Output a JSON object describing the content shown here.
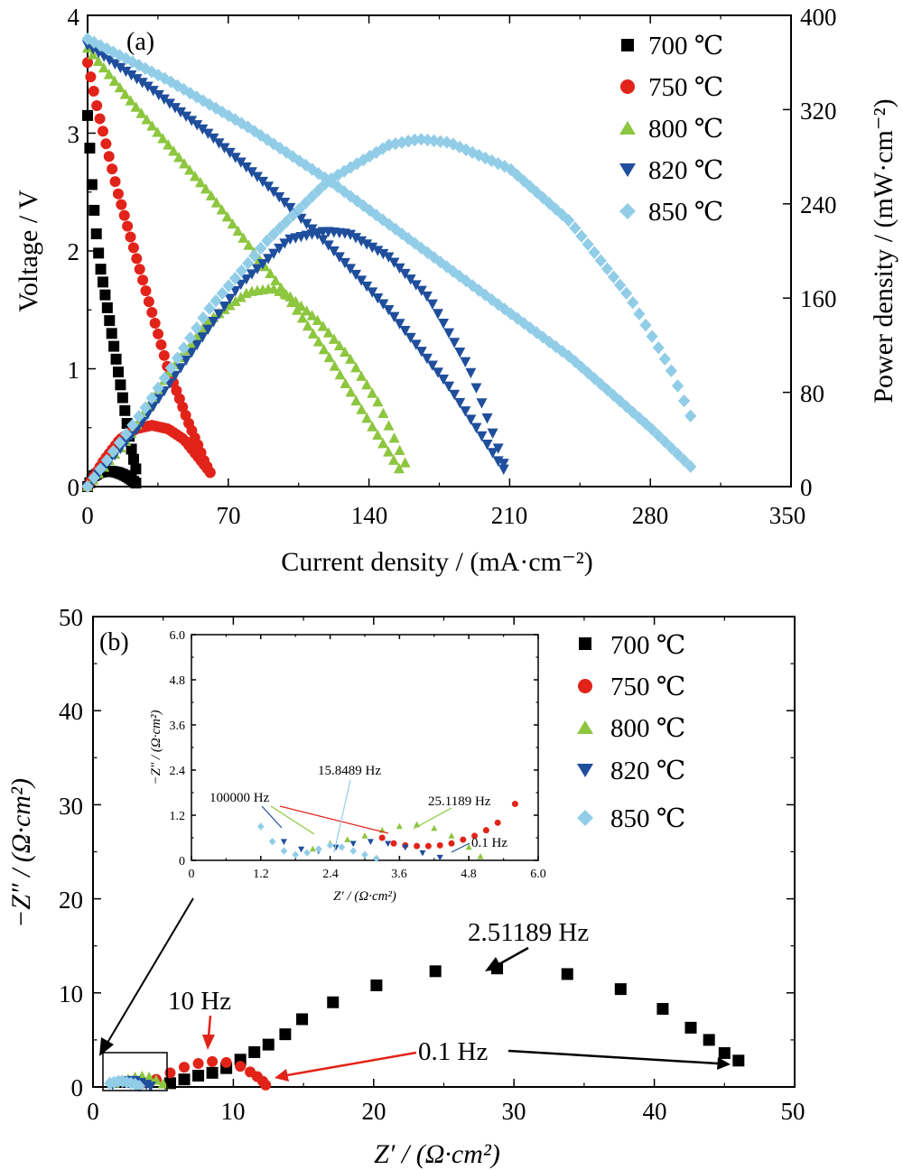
{
  "colors": {
    "700": "#000000",
    "750": "#e2231a",
    "800": "#8dc63f",
    "820": "#1f4e9c",
    "850": "#92cde8"
  },
  "legend": [
    "700 ℃",
    "750 ℃",
    "800 ℃",
    "820 ℃",
    "850 ℃"
  ],
  "chart_data": [
    {
      "type": "line",
      "panel_label": "(a)",
      "xlabel": "Current density / (mA·cm⁻²)",
      "ylabel": "Voltage / V",
      "y2label": "Power density / (mW·cm⁻²)",
      "xlim": [
        0,
        350
      ],
      "ylim": [
        0,
        4
      ],
      "y2lim": [
        0,
        400
      ],
      "xticks": [
        "0",
        "70",
        "140",
        "210",
        "280",
        "350"
      ],
      "yticks": [
        "0",
        "1",
        "2",
        "3",
        "4"
      ],
      "y2ticks": [
        "0",
        "80",
        "160",
        "240",
        "320",
        "400"
      ],
      "legend_position": "top-right",
      "grid": false,
      "voltage_series": [
        {
          "name": "700 ℃",
          "x": [
            0,
            1,
            2,
            4,
            6,
            8,
            10,
            12,
            14,
            16,
            18,
            20,
            22,
            24
          ],
          "y": [
            3.15,
            2.9,
            2.6,
            2.2,
            1.9,
            1.7,
            1.5,
            1.3,
            1.1,
            0.9,
            0.7,
            0.5,
            0.3,
            0.15
          ]
        },
        {
          "name": "750 ℃",
          "x": [
            0,
            5,
            10,
            15,
            20,
            25,
            30,
            35,
            40,
            45,
            50,
            55,
            58,
            61
          ],
          "y": [
            3.6,
            3.2,
            2.85,
            2.5,
            2.2,
            1.9,
            1.6,
            1.3,
            1.0,
            0.78,
            0.55,
            0.35,
            0.22,
            0.12
          ]
        },
        {
          "name": "800 ℃",
          "x": [
            0,
            20,
            40,
            60,
            80,
            100,
            120,
            140,
            155
          ],
          "y": [
            3.72,
            3.3,
            2.9,
            2.5,
            2.05,
            1.6,
            1.1,
            0.55,
            0.15
          ]
        },
        {
          "name": "820 ℃",
          "x": [
            0,
            30,
            60,
            90,
            120,
            150,
            180,
            207
          ],
          "y": [
            3.75,
            3.4,
            3.0,
            2.55,
            2.05,
            1.5,
            0.85,
            0.15
          ]
        },
        {
          "name": "850 ℃",
          "x": [
            0,
            40,
            80,
            120,
            160,
            200,
            240,
            280,
            300
          ],
          "y": [
            3.8,
            3.45,
            3.05,
            2.6,
            2.1,
            1.6,
            1.1,
            0.5,
            0.17
          ]
        }
      ],
      "power_series": [
        {
          "name": "700 ℃",
          "x": [
            0,
            3,
            6,
            9,
            12,
            15,
            18,
            21,
            24
          ],
          "y": [
            0,
            9,
            12,
            13,
            13,
            12,
            10,
            7,
            3
          ]
        },
        {
          "name": "750 ℃",
          "x": [
            0,
            8,
            16,
            24,
            32,
            40,
            48,
            55,
            61
          ],
          "y": [
            0,
            22,
            40,
            49,
            52,
            49,
            40,
            25,
            12
          ]
        },
        {
          "name": "800 ℃",
          "x": [
            0,
            20,
            40,
            60,
            80,
            92,
            100,
            115,
            130,
            145,
            158
          ],
          "y": [
            0,
            40,
            95,
            140,
            165,
            168,
            162,
            140,
            110,
            70,
            20
          ]
        },
        {
          "name": "820 ℃",
          "x": [
            0,
            25,
            50,
            75,
            100,
            118,
            130,
            150,
            170,
            190,
            207
          ],
          "y": [
            0,
            50,
            110,
            170,
            210,
            217,
            215,
            195,
            160,
            100,
            20
          ]
        },
        {
          "name": "850 ℃",
          "x": [
            0,
            30,
            60,
            90,
            120,
            150,
            165,
            180,
            210,
            240,
            270,
            290,
            300
          ],
          "y": [
            0,
            70,
            150,
            210,
            260,
            290,
            295,
            292,
            270,
            225,
            160,
            100,
            60
          ]
        }
      ]
    },
    {
      "type": "scatter",
      "panel_label": "(b)",
      "xlabel": "Z′ / (Ω·cm²)",
      "ylabel": "−Z″ / (Ω·cm²)",
      "xlim": [
        0,
        50
      ],
      "ylim": [
        0,
        50
      ],
      "xticks": [
        "0",
        "10",
        "20",
        "30",
        "40",
        "50"
      ],
      "yticks": [
        "0",
        "10",
        "20",
        "30",
        "40",
        "50"
      ],
      "legend_position": "top-right",
      "grid": false,
      "series": [
        {
          "name": "700 ℃",
          "x": [
            5.5,
            6.5,
            7.5,
            8.5,
            9.5,
            10.5,
            11.5,
            12.5,
            13.7,
            14.9,
            17.1,
            20.2,
            24.4,
            28.8,
            33.8,
            37.6,
            40.6,
            42.6,
            43.9,
            45.0,
            46.0
          ],
          "y": [
            0.4,
            0.8,
            1.2,
            1.5,
            2.0,
            2.9,
            3.7,
            4.5,
            5.6,
            7.2,
            9.0,
            10.8,
            12.3,
            12.6,
            12.0,
            10.4,
            8.3,
            6.3,
            5.0,
            3.6,
            2.8
          ]
        },
        {
          "name": "750 ℃",
          "x": [
            3.5,
            4.5,
            5.5,
            6.5,
            7.5,
            8.5,
            9.5,
            10.5,
            11.2,
            11.7,
            12.1,
            12.3
          ],
          "y": [
            0.4,
            0.8,
            1.5,
            2.1,
            2.5,
            2.7,
            2.6,
            2.2,
            1.6,
            1.1,
            0.6,
            0.2
          ]
        },
        {
          "name": "800 ℃",
          "x": [
            1.5,
            2.0,
            2.5,
            3.0,
            3.5,
            4.0,
            4.5,
            5.0
          ],
          "y": [
            0.4,
            0.6,
            0.8,
            1.0,
            1.1,
            1.0,
            0.7,
            0.3
          ]
        },
        {
          "name": "820 ℃",
          "x": [
            1.4,
            1.8,
            2.2,
            2.6,
            3.0,
            3.4,
            3.8,
            4.1
          ],
          "y": [
            0.3,
            0.5,
            0.6,
            0.7,
            0.7,
            0.5,
            0.3,
            0.1
          ]
        },
        {
          "name": "850 ℃",
          "x": [
            1.2,
            1.5,
            1.8,
            2.1,
            2.4,
            2.7,
            3.0,
            3.3
          ],
          "y": [
            0.4,
            0.5,
            0.6,
            0.6,
            0.5,
            0.4,
            0.3,
            0.1
          ]
        }
      ],
      "annotations": [
        {
          "text": "2.51189 Hz",
          "target_x": 28.0,
          "target_y": 12.0
        },
        {
          "text": "10 Hz",
          "target_x": 8.4,
          "target_y": 3.0
        },
        {
          "text": "0.1 Hz",
          "targets": [
            [
              12.6,
              0.7
            ],
            [
              45.0,
              2.8
            ]
          ]
        }
      ],
      "inset": {
        "xlim": [
          0,
          6
        ],
        "ylim": [
          0,
          6
        ],
        "xticks": [
          "0",
          "1.2",
          "2.4",
          "3.6",
          "4.8",
          "6.0"
        ],
        "yticks": [
          "0",
          "1.2",
          "2.4",
          "3.6",
          "4.8",
          "6.0"
        ],
        "xlabel": "Z′ / (Ω·cm²)",
        "ylabel": "−Z″ / (Ω·cm²)",
        "series": [
          {
            "name": "750 ℃",
            "x": [
              3.3,
              3.5,
              3.7,
              3.9,
              4.1,
              4.3,
              4.5,
              4.7,
              4.9,
              5.1,
              5.3,
              5.6
            ],
            "y": [
              0.6,
              0.45,
              0.4,
              0.38,
              0.38,
              0.4,
              0.45,
              0.55,
              0.65,
              0.8,
              1.0,
              1.5
            ]
          },
          {
            "name": "800 ℃",
            "x": [
              2.1,
              2.4,
              2.7,
              3.0,
              3.3,
              3.6,
              3.9,
              4.2,
              4.5,
              4.8,
              5.0
            ],
            "y": [
              0.3,
              0.45,
              0.55,
              0.65,
              0.8,
              0.9,
              0.95,
              0.85,
              0.65,
              0.35,
              0.1
            ]
          },
          {
            "name": "820 ℃",
            "x": [
              1.6,
              1.9,
              2.2,
              2.5,
              2.8,
              3.1,
              3.4,
              3.7,
              4.0,
              4.3
            ],
            "y": [
              0.5,
              0.3,
              0.25,
              0.35,
              0.45,
              0.5,
              0.45,
              0.35,
              0.2,
              0.08
            ]
          },
          {
            "name": "850 ℃",
            "x": [
              1.2,
              1.4,
              1.6,
              1.8,
              2.0,
              2.2,
              2.4,
              2.6,
              2.8,
              3.0,
              3.2
            ],
            "y": [
              0.9,
              0.5,
              0.25,
              0.15,
              0.2,
              0.3,
              0.4,
              0.35,
              0.25,
              0.15,
              0.05
            ]
          }
        ],
        "annotations": [
          "100000 Hz",
          "15.8489 Hz",
          "25.1189 Hz",
          "0.1 Hz"
        ]
      }
    }
  ]
}
